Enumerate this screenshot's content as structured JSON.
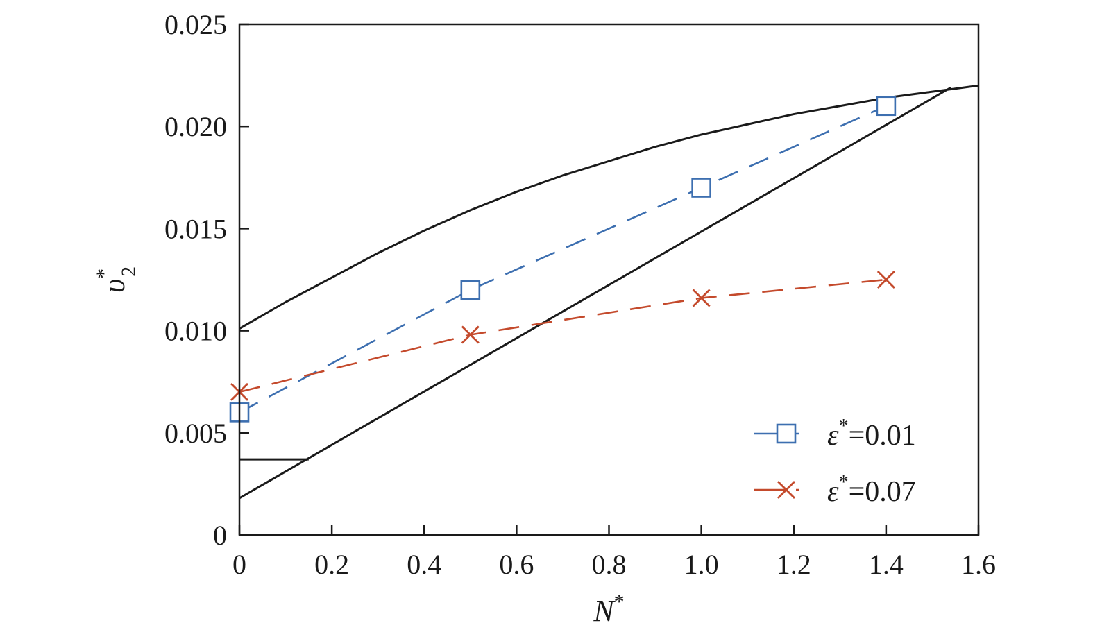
{
  "chart_data": {
    "type": "line",
    "xlabel": "N",
    "xlabel_sup": "*",
    "ylabel": "υ",
    "ylabel_sup": "*",
    "ylabel_sub": "2",
    "xlim": [
      0,
      1.6
    ],
    "ylim": [
      0,
      0.025
    ],
    "x_ticks": [
      0,
      0.2,
      0.4,
      0.6,
      0.8,
      1.0,
      1.2,
      1.4,
      1.6
    ],
    "x_tick_labels": [
      "0",
      "0.2",
      "0.4",
      "0.6",
      "0.8",
      "1.0",
      "1.2",
      "1.4",
      "1.6"
    ],
    "y_ticks": [
      0,
      0.005,
      0.01,
      0.015,
      0.02,
      0.025
    ],
    "y_tick_labels": [
      "0",
      "0.005",
      "0.010",
      "0.015",
      "0.020",
      "0.025"
    ],
    "grid": false,
    "legend_position": "bottom-right",
    "series": [
      {
        "name": "ε*=0.01",
        "legend_symbol": "ε",
        "legend_sup": "*",
        "legend_value": "=0.01",
        "x": [
          0,
          0.5,
          1.0,
          1.4
        ],
        "y": [
          0.006,
          0.012,
          0.017,
          0.021
        ],
        "color": "#3d6fb0",
        "marker": "square",
        "line_style": "dashed"
      },
      {
        "name": "ε*=0.07",
        "legend_symbol": "ε",
        "legend_sup": "*",
        "legend_value": "=0.07",
        "x": [
          0,
          0.5,
          1.0,
          1.4
        ],
        "y": [
          0.007,
          0.0098,
          0.0116,
          0.0125
        ],
        "color": "#c44a2c",
        "marker": "x",
        "line_style": "dashed"
      }
    ],
    "boundaries": [
      {
        "kind": "upper-curve",
        "x": [
          0,
          0.1,
          0.2,
          0.3,
          0.4,
          0.5,
          0.6,
          0.7,
          0.8,
          0.9,
          1.0,
          1.1,
          1.2,
          1.3,
          1.4,
          1.5,
          1.6
        ],
        "y": [
          0.0101,
          0.0114,
          0.0126,
          0.0138,
          0.0149,
          0.0159,
          0.0168,
          0.0176,
          0.0183,
          0.019,
          0.0196,
          0.0201,
          0.0206,
          0.021,
          0.0214,
          0.0217,
          0.022
        ],
        "color": "#1a1a1a"
      },
      {
        "kind": "lower-line",
        "x": [
          0,
          1.54
        ],
        "y": [
          0.0018,
          0.0219
        ],
        "color": "#1a1a1a"
      },
      {
        "kind": "horizontal-segment",
        "x": [
          0,
          0.15
        ],
        "y": [
          0.0037,
          0.0037
        ],
        "color": "#1a1a1a"
      }
    ]
  }
}
